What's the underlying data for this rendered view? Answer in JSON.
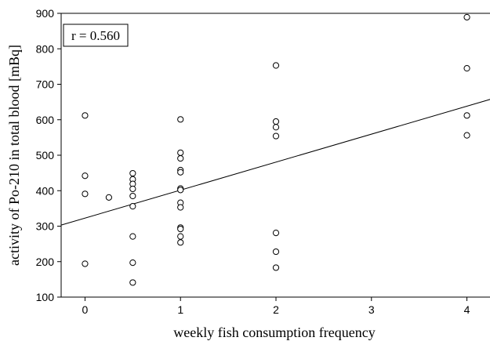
{
  "chart_data": {
    "type": "scatter",
    "xlabel": "weekly fish consumption frequency",
    "ylabel": "activity of Po-210 in total blood [mBq]",
    "xlim": [
      -0.25,
      4.25
    ],
    "ylim": [
      100,
      900
    ],
    "xticks": [
      0,
      1,
      2,
      3,
      4
    ],
    "yticks": [
      100,
      200,
      300,
      400,
      500,
      600,
      700,
      800,
      900
    ],
    "annotation": "r = 0.560",
    "points": [
      {
        "x": 0,
        "y": 612
      },
      {
        "x": 0,
        "y": 442
      },
      {
        "x": 0,
        "y": 391
      },
      {
        "x": 0,
        "y": 194
      },
      {
        "x": 0.25,
        "y": 381
      },
      {
        "x": 0.5,
        "y": 449
      },
      {
        "x": 0.5,
        "y": 432
      },
      {
        "x": 0.5,
        "y": 419
      },
      {
        "x": 0.5,
        "y": 405
      },
      {
        "x": 0.5,
        "y": 385
      },
      {
        "x": 0.5,
        "y": 356
      },
      {
        "x": 0.5,
        "y": 271
      },
      {
        "x": 0.5,
        "y": 197
      },
      {
        "x": 0.5,
        "y": 141
      },
      {
        "x": 1,
        "y": 601
      },
      {
        "x": 1,
        "y": 507
      },
      {
        "x": 1,
        "y": 491
      },
      {
        "x": 1,
        "y": 458
      },
      {
        "x": 1,
        "y": 452
      },
      {
        "x": 1,
        "y": 406
      },
      {
        "x": 1,
        "y": 402
      },
      {
        "x": 1,
        "y": 366
      },
      {
        "x": 1,
        "y": 353
      },
      {
        "x": 1,
        "y": 296
      },
      {
        "x": 1,
        "y": 292
      },
      {
        "x": 1,
        "y": 271
      },
      {
        "x": 1,
        "y": 254
      },
      {
        "x": 2,
        "y": 753
      },
      {
        "x": 2,
        "y": 595
      },
      {
        "x": 2,
        "y": 579
      },
      {
        "x": 2,
        "y": 554
      },
      {
        "x": 2,
        "y": 281
      },
      {
        "x": 2,
        "y": 228
      },
      {
        "x": 2,
        "y": 183
      },
      {
        "x": 4,
        "y": 889
      },
      {
        "x": 4,
        "y": 745
      },
      {
        "x": 4,
        "y": 612
      },
      {
        "x": 4,
        "y": 556
      }
    ],
    "trendline": {
      "x": [
        -0.25,
        4.25
      ],
      "y": [
        303,
        658
      ]
    },
    "grid": false
  }
}
